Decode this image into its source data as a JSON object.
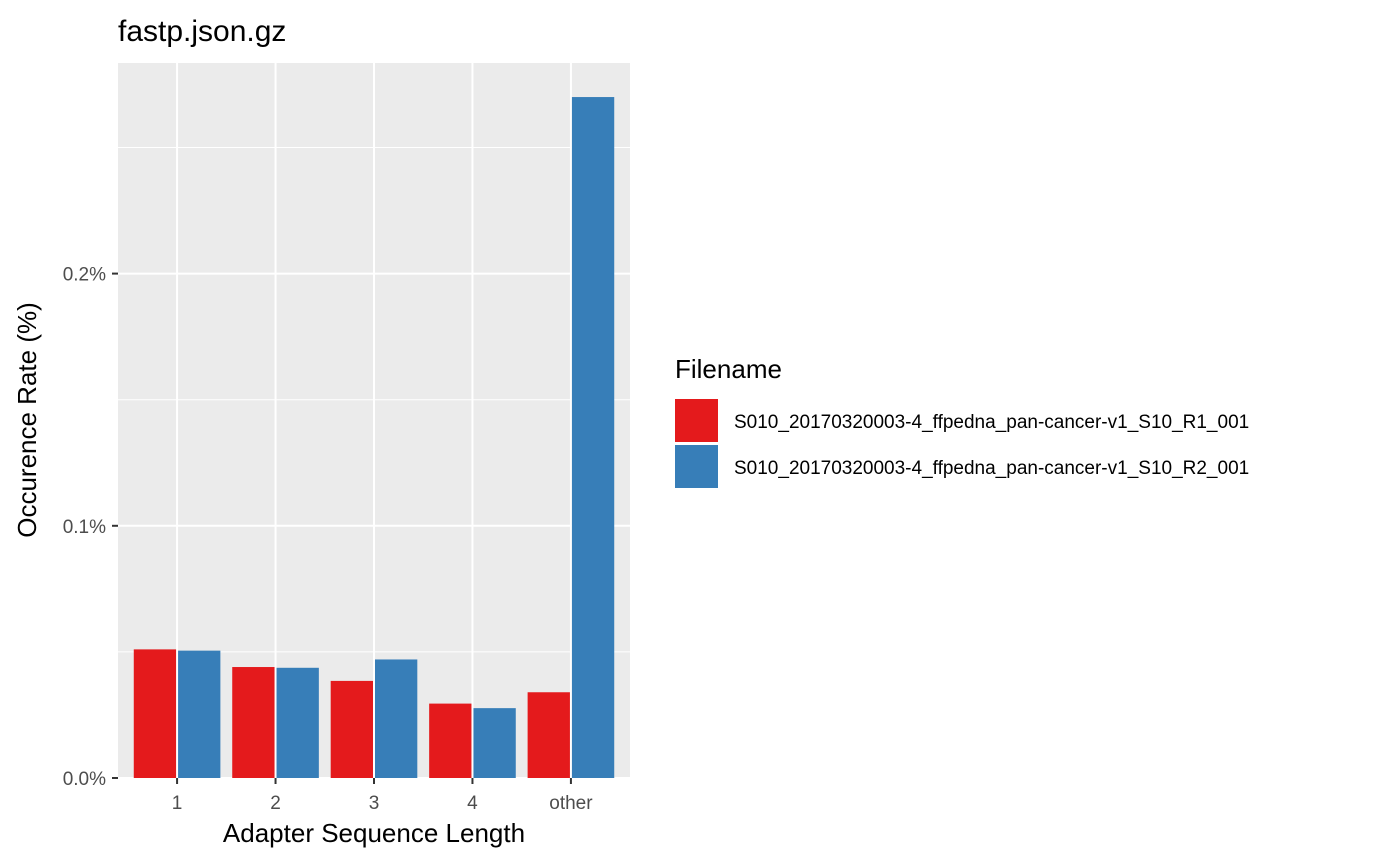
{
  "chart_data": {
    "type": "bar",
    "title": "fastp.json.gz",
    "xlabel": "Adapter Sequence Length",
    "ylabel": "Occurence Rate (%)",
    "categories": [
      "1",
      "2",
      "3",
      "4",
      "other"
    ],
    "series": [
      {
        "name": "S010_20170320003-4_ffpedna_pan-cancer-v1_S10_R1_001",
        "color": "#E41A1C",
        "values": [
          0.051,
          0.044,
          0.0385,
          0.0295,
          0.034
        ]
      },
      {
        "name": "S010_20170320003-4_ffpedna_pan-cancer-v1_S10_R2_001",
        "color": "#377EB8",
        "values": [
          0.0505,
          0.0437,
          0.047,
          0.0277,
          0.27
        ]
      }
    ],
    "yticks": [
      0,
      0.1,
      0.2
    ],
    "ytick_labels": [
      "0.0%",
      "0.1%",
      "0.2%"
    ],
    "ylim": [
      0,
      0.2835
    ],
    "grid": true,
    "legend": {
      "title": "Filename",
      "position": "right"
    }
  },
  "colors": {
    "panel_background": "#EBEBEB",
    "grid": "#FFFFFF"
  }
}
